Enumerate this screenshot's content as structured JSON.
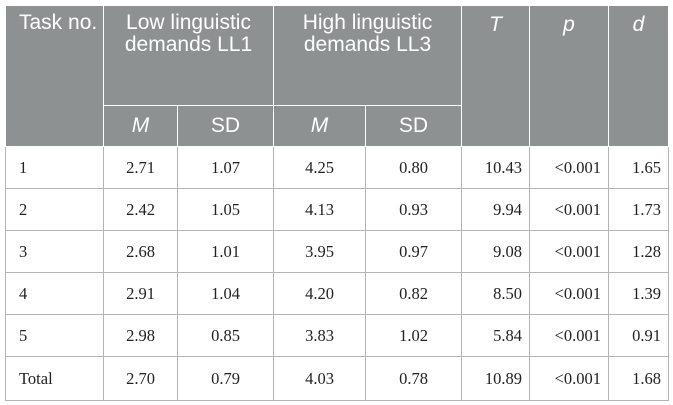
{
  "header": {
    "task": "Task no.",
    "low_group": "Low linguistic demands LL1",
    "high_group": "High linguistic demands LL3",
    "t": "T",
    "p": "p",
    "d": "d",
    "m": "M",
    "sd": "SD"
  },
  "rows": [
    {
      "task": "1",
      "low_m": "2.71",
      "low_sd": "1.07",
      "high_m": "4.25",
      "high_sd": "0.80",
      "t": "10.43",
      "p": "<0.001",
      "d": "1.65"
    },
    {
      "task": "2",
      "low_m": "2.42",
      "low_sd": "1.05",
      "high_m": "4.13",
      "high_sd": "0.93",
      "t": "9.94",
      "p": "<0.001",
      "d": "1.73"
    },
    {
      "task": "3",
      "low_m": "2.68",
      "low_sd": "1.01",
      "high_m": "3.95",
      "high_sd": "0.97",
      "t": "9.08",
      "p": "<0.001",
      "d": "1.28"
    },
    {
      "task": "4",
      "low_m": "2.91",
      "low_sd": "1.04",
      "high_m": "4.20",
      "high_sd": "0.82",
      "t": "8.50",
      "p": "<0.001",
      "d": "1.39"
    },
    {
      "task": "5",
      "low_m": "2.98",
      "low_sd": "0.85",
      "high_m": "3.83",
      "high_sd": "1.02",
      "t": "5.84",
      "p": "<0.001",
      "d": "0.91"
    },
    {
      "task": "Total",
      "low_m": "2.70",
      "low_sd": "0.79",
      "high_m": "4.03",
      "high_sd": "0.78",
      "t": "10.89",
      "p": "<0.001",
      "d": "1.68"
    }
  ]
}
